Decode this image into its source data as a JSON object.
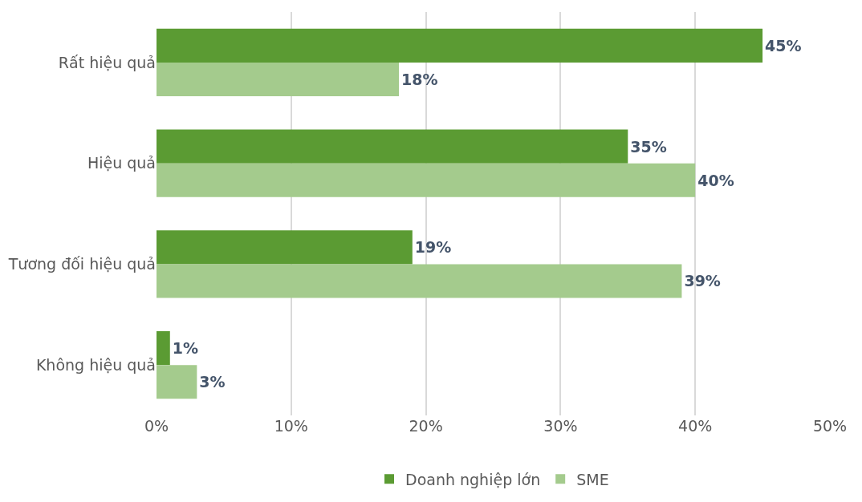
{
  "chart_data": {
    "type": "bar",
    "orientation": "horizontal",
    "categories": [
      "Rất hiệu quả",
      "Hiệu quả",
      "Tương đối hiệu quả",
      "Không hiệu quả"
    ],
    "series": [
      {
        "name": "Doanh nghiệp lớn",
        "color": "#5b9b33",
        "values": [
          45,
          35,
          19,
          1
        ],
        "value_labels": [
          "45%",
          "35%",
          "19%",
          "1%"
        ]
      },
      {
        "name": "SME",
        "color": "#a4cb8d",
        "values": [
          18,
          40,
          39,
          3
        ],
        "value_labels": [
          "18%",
          "40%",
          "39%",
          "3%"
        ]
      }
    ],
    "xlim": [
      0,
      50
    ],
    "xticks": [
      {
        "value": 0,
        "label": "0%"
      },
      {
        "value": 10,
        "label": "10%"
      },
      {
        "value": 20,
        "label": "20%"
      },
      {
        "value": 30,
        "label": "30%"
      },
      {
        "value": 40,
        "label": "40%"
      },
      {
        "value": 50,
        "label": "50%"
      }
    ],
    "grid": "x",
    "legend": "bottom"
  }
}
